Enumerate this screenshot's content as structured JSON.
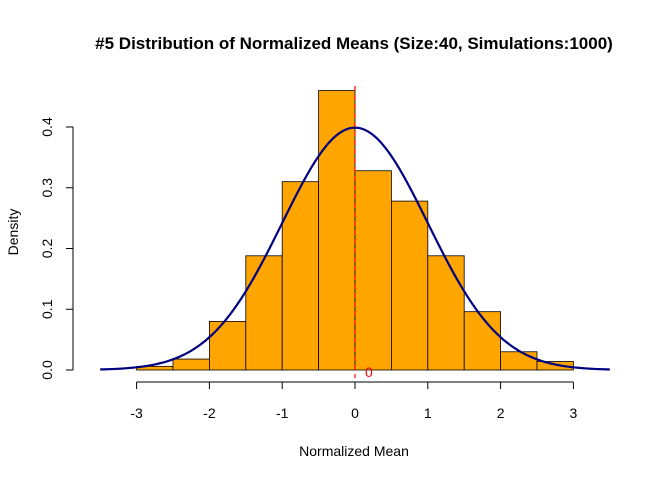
{
  "chart_data": {
    "type": "bar",
    "title": "#5 Distribution of Normalized Means (Size:40, Simulations:1000)",
    "xlabel": "Normalized Mean",
    "ylabel": "Density",
    "xlim": [
      -3.5,
      3.5
    ],
    "ylim": [
      0,
      0.46
    ],
    "x_ticks": [
      -3,
      -2,
      -1,
      0,
      1,
      2,
      3
    ],
    "x_tick_labels": [
      "-3",
      "-2",
      "-1",
      "0",
      "1",
      "2",
      "3"
    ],
    "y_ticks": [
      0.0,
      0.1,
      0.2,
      0.3,
      0.4
    ],
    "y_tick_labels": [
      "0.0",
      "0.1",
      "0.2",
      "0.3",
      "0.4"
    ],
    "bins": [
      {
        "x0": -3.0,
        "x1": -2.5,
        "density": 0.006
      },
      {
        "x0": -2.5,
        "x1": -2.0,
        "density": 0.018
      },
      {
        "x0": -2.0,
        "x1": -1.5,
        "density": 0.08
      },
      {
        "x0": -1.5,
        "x1": -1.0,
        "density": 0.188
      },
      {
        "x0": -1.0,
        "x1": -0.5,
        "density": 0.31
      },
      {
        "x0": -0.5,
        "x1": 0.0,
        "density": 0.46
      },
      {
        "x0": 0.0,
        "x1": 0.5,
        "density": 0.328
      },
      {
        "x0": 0.5,
        "x1": 1.0,
        "density": 0.278
      },
      {
        "x0": 1.0,
        "x1": 1.5,
        "density": 0.188
      },
      {
        "x0": 1.5,
        "x1": 2.0,
        "density": 0.096
      },
      {
        "x0": 2.0,
        "x1": 2.5,
        "density": 0.03
      },
      {
        "x0": 2.5,
        "x1": 3.0,
        "density": 0.014
      }
    ],
    "curve": {
      "type": "normal-density",
      "mean": 0,
      "sd": 1,
      "from": -3.5,
      "to": 3.5
    },
    "vline": {
      "x": 0,
      "label": "0"
    },
    "colors": {
      "bar_fill": "#FFA500",
      "bar_border": "#000000",
      "curve": "#000080",
      "vline": "#FF0000"
    }
  }
}
